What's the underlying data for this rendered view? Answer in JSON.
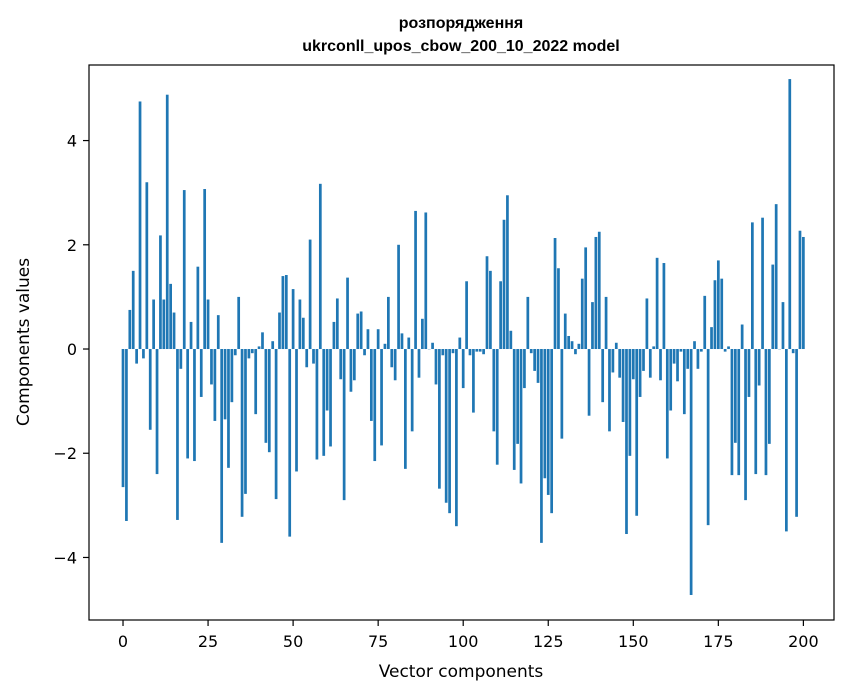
{
  "chart_data": {
    "type": "bar",
    "title_line1": "розпорядження",
    "title_line2": "ukrconll_upos_cbow_200_10_2022 model",
    "xlabel": "Vector components",
    "ylabel": "Components values",
    "xlim": [
      -10,
      209
    ],
    "ylim": [
      -5.2,
      5.45
    ],
    "xticks": [
      0,
      25,
      50,
      75,
      100,
      125,
      150,
      175,
      200
    ],
    "xtick_labels": [
      "0",
      "25",
      "50",
      "75",
      "100",
      "125",
      "150",
      "175",
      "200"
    ],
    "yticks": [
      -4,
      -2,
      0,
      2,
      4
    ],
    "ytick_labels": [
      "−4",
      "−2",
      "0",
      "2",
      "4"
    ],
    "grid": false,
    "bar_color": "#1f77b4",
    "values": [
      -2.65,
      -3.3,
      0.75,
      1.5,
      -0.28,
      4.75,
      -0.18,
      3.2,
      -1.55,
      0.95,
      -2.4,
      2.18,
      0.95,
      4.88,
      1.25,
      0.7,
      -3.28,
      -0.38,
      3.05,
      -2.1,
      0.52,
      -2.15,
      1.58,
      -0.92,
      3.07,
      0.95,
      -0.68,
      -1.38,
      0.65,
      -3.72,
      -1.35,
      -2.28,
      -1.02,
      -0.12,
      1.0,
      -3.22,
      -2.78,
      -0.18,
      -0.08,
      -1.25,
      0.05,
      0.32,
      -1.8,
      -1.98,
      0.15,
      -2.88,
      0.7,
      1.4,
      1.42,
      -3.6,
      1.15,
      -2.35,
      0.95,
      0.6,
      -0.35,
      2.1,
      -0.28,
      -2.12,
      3.17,
      -2.05,
      -1.18,
      -1.87,
      0.52,
      0.97,
      -0.58,
      -2.9,
      1.37,
      -0.82,
      -0.6,
      0.68,
      0.72,
      -0.12,
      0.38,
      -1.38,
      -2.15,
      0.38,
      -1.85,
      0.1,
      1.0,
      -0.35,
      -0.6,
      2.0,
      0.3,
      -2.3,
      0.22,
      -1.58,
      2.65,
      -0.55,
      0.58,
      2.62,
      0.0,
      0.12,
      -0.68,
      -2.68,
      -0.12,
      -2.95,
      -3.15,
      -0.08,
      -3.4,
      0.22,
      -0.75,
      1.3,
      -0.12,
      -1.22,
      -0.05,
      -0.05,
      -0.1,
      1.78,
      1.5,
      -1.58,
      -2.22,
      1.3,
      2.48,
      2.95,
      0.35,
      -2.32,
      -1.82,
      -2.58,
      -0.75,
      1.0,
      -0.08,
      -0.42,
      -0.65,
      -3.72,
      -2.48,
      -2.8,
      -3.15,
      2.13,
      1.55,
      -1.72,
      0.68,
      0.25,
      0.15,
      -0.1,
      0.1,
      1.35,
      1.95,
      -1.28,
      0.9,
      2.15,
      2.25,
      -1.02,
      1.0,
      -1.58,
      -0.45,
      0.12,
      -0.55,
      -1.4,
      -3.55,
      -2.05,
      -0.58,
      -3.2,
      -0.92,
      -0.42,
      0.97,
      -0.55,
      0.05,
      1.75,
      -0.6,
      1.65,
      -2.1,
      -1.18,
      -0.28,
      -0.62,
      -0.05,
      -1.25,
      -0.38,
      -4.72,
      0.15,
      -0.38,
      -0.05,
      1.02,
      -3.38,
      0.42,
      1.32,
      1.7,
      1.35,
      -0.05,
      0.05,
      -2.42,
      -1.8,
      -2.42,
      0.47,
      -2.9,
      -0.92,
      2.43,
      -2.4,
      -0.7,
      2.52,
      -2.42,
      -1.82,
      1.62,
      2.78,
      0.0,
      0.9,
      -3.5,
      5.18,
      -0.08,
      -3.22,
      2.27,
      2.15
    ]
  }
}
